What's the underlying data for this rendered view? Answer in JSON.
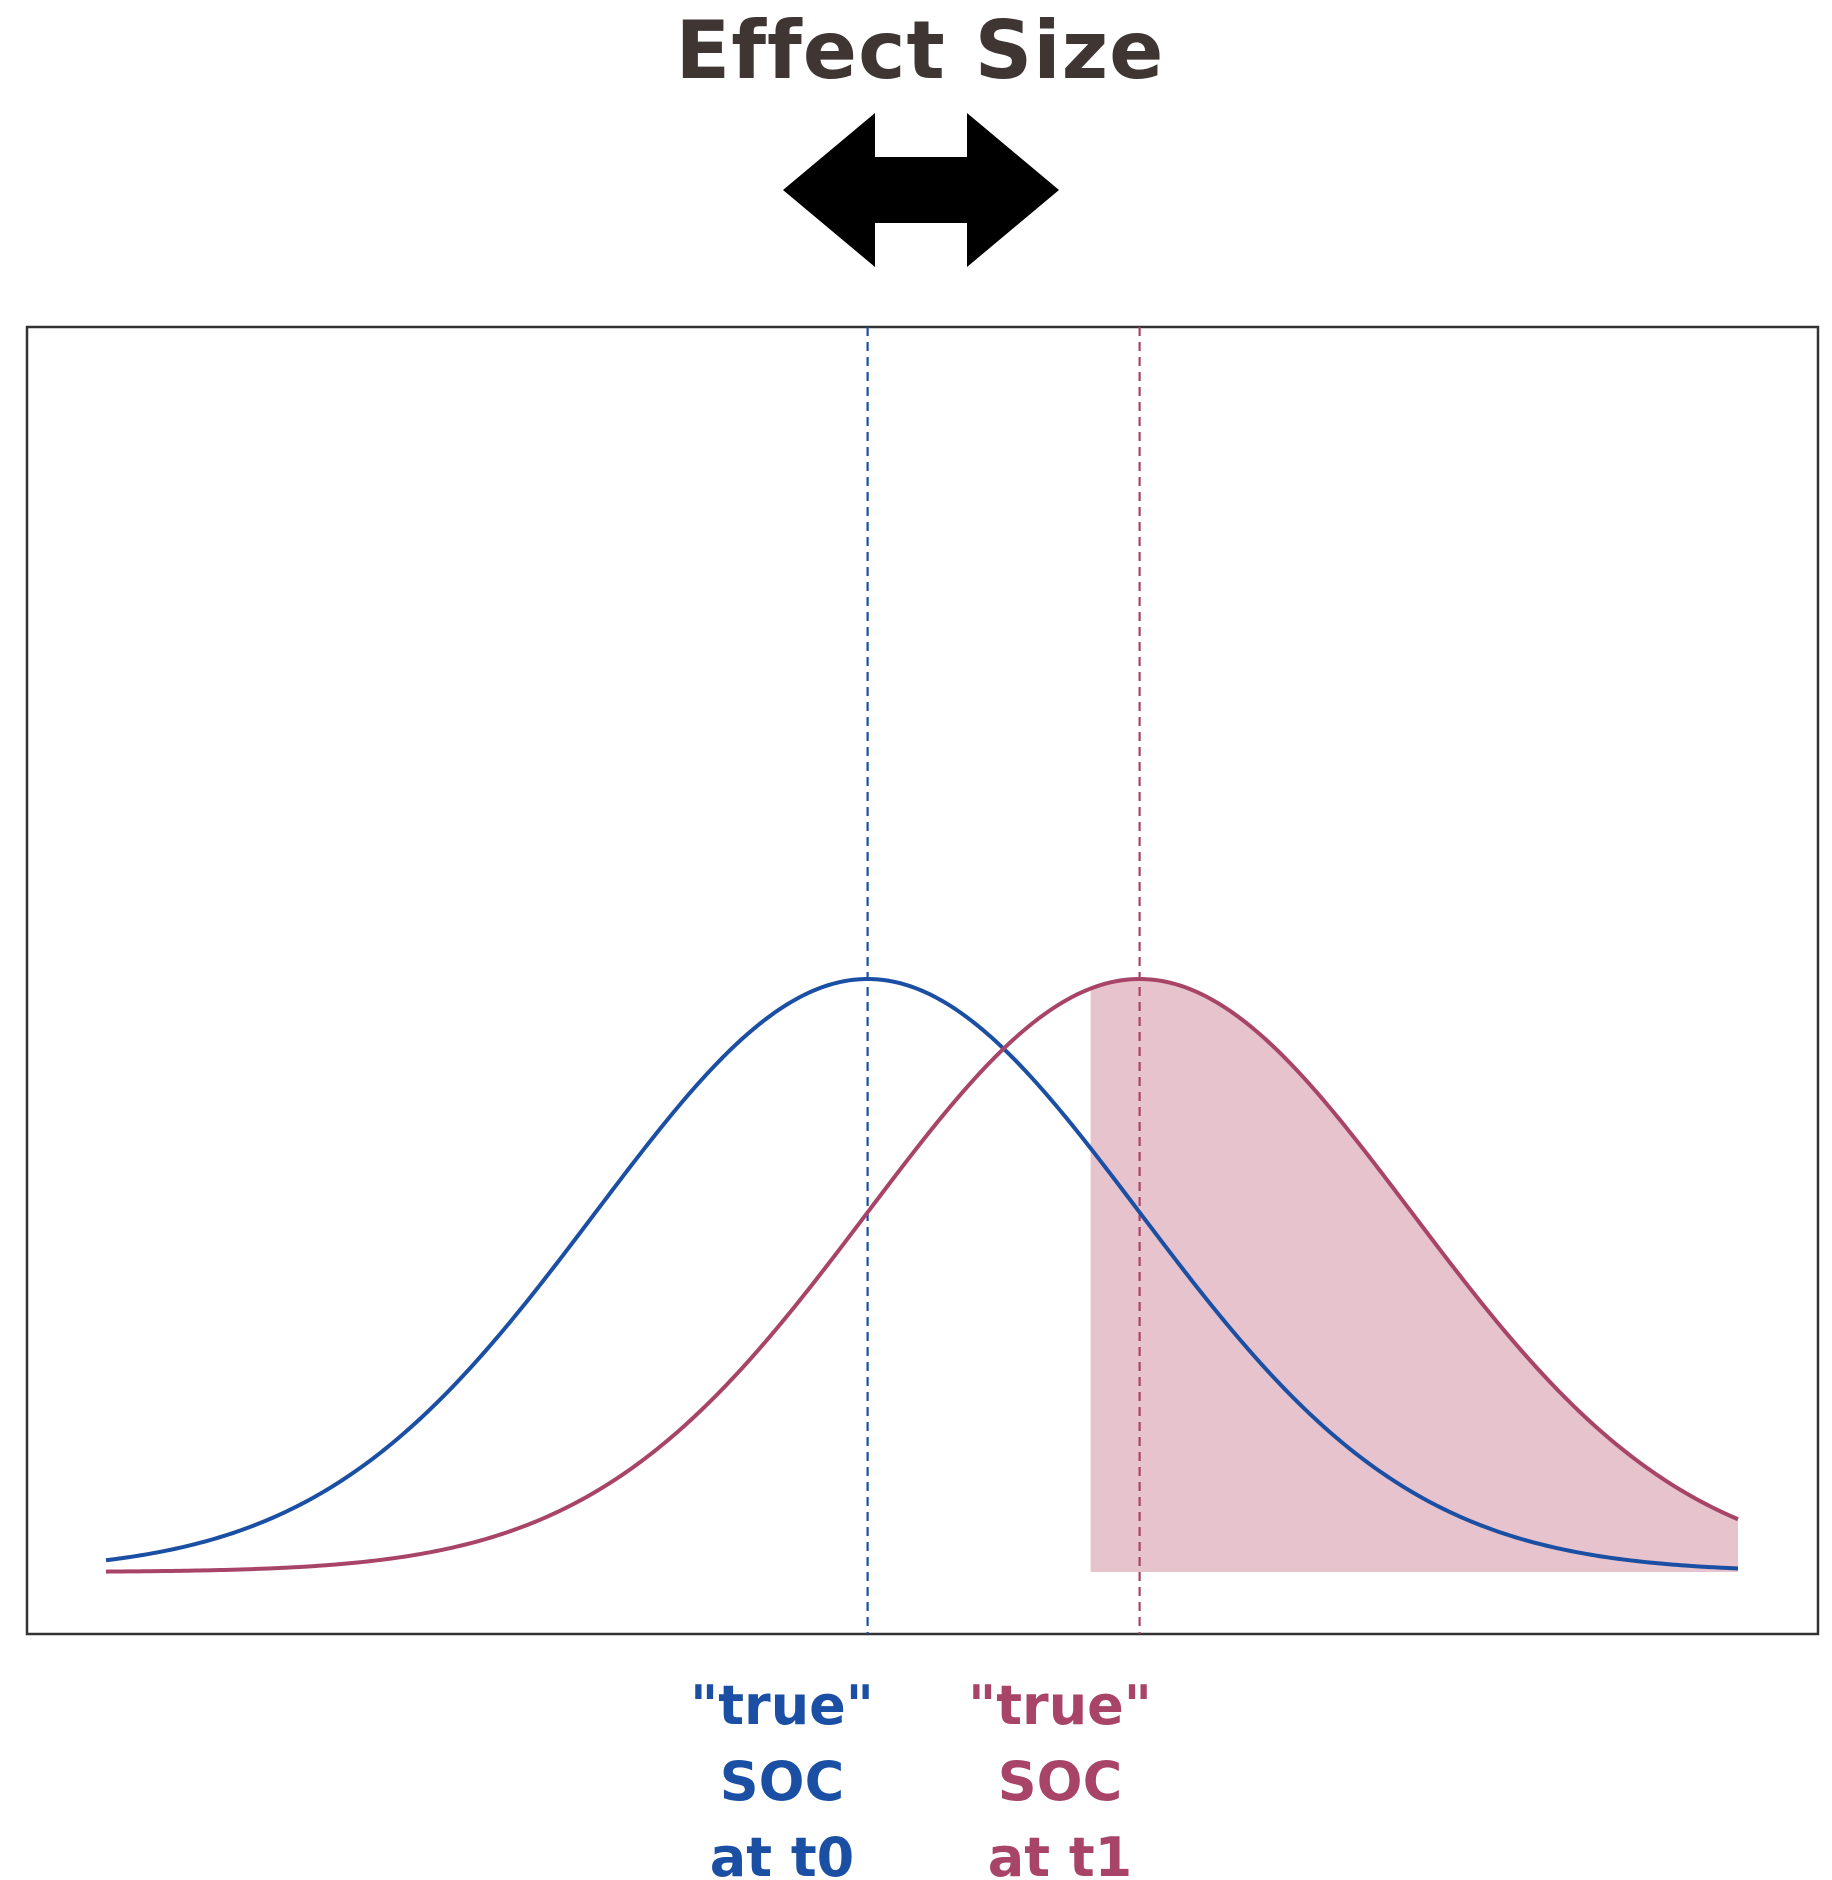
{
  "title": "Effect Size",
  "colors": {
    "title": "#3f3634",
    "arrow": "#000000",
    "frame": "#333333",
    "blue": "#1a4fa3",
    "red": "#a84468",
    "shade": "#e6c3cd"
  },
  "icons": {
    "effect_arrow": "double-headed-arrow-icon"
  },
  "chart_data": {
    "type": "line",
    "series": [
      {
        "mean": 0.0,
        "sd": 1.0,
        "color": "#1a4fa3"
      },
      {
        "mean": 1.0,
        "sd": 1.0,
        "color": "#a84468"
      }
    ],
    "xlim": [
      -2.8,
      3.2
    ],
    "shaded_region": {
      "series_index": 1,
      "from": 0.82,
      "to": 3.2
    },
    "reference_lines": [
      {
        "x": 0.0,
        "style": "dashed",
        "color": "#1a4fa3"
      },
      {
        "x": 1.0,
        "style": "dashed",
        "color": "#a84468"
      }
    ],
    "grid": false,
    "axes_ticks": false
  },
  "labels": {
    "blue": {
      "line1": "\"true\"",
      "line2": "SOC",
      "line3": "at t0"
    },
    "red": {
      "line1": "\"true\"",
      "line2": "SOC",
      "line3": "at t1"
    }
  }
}
